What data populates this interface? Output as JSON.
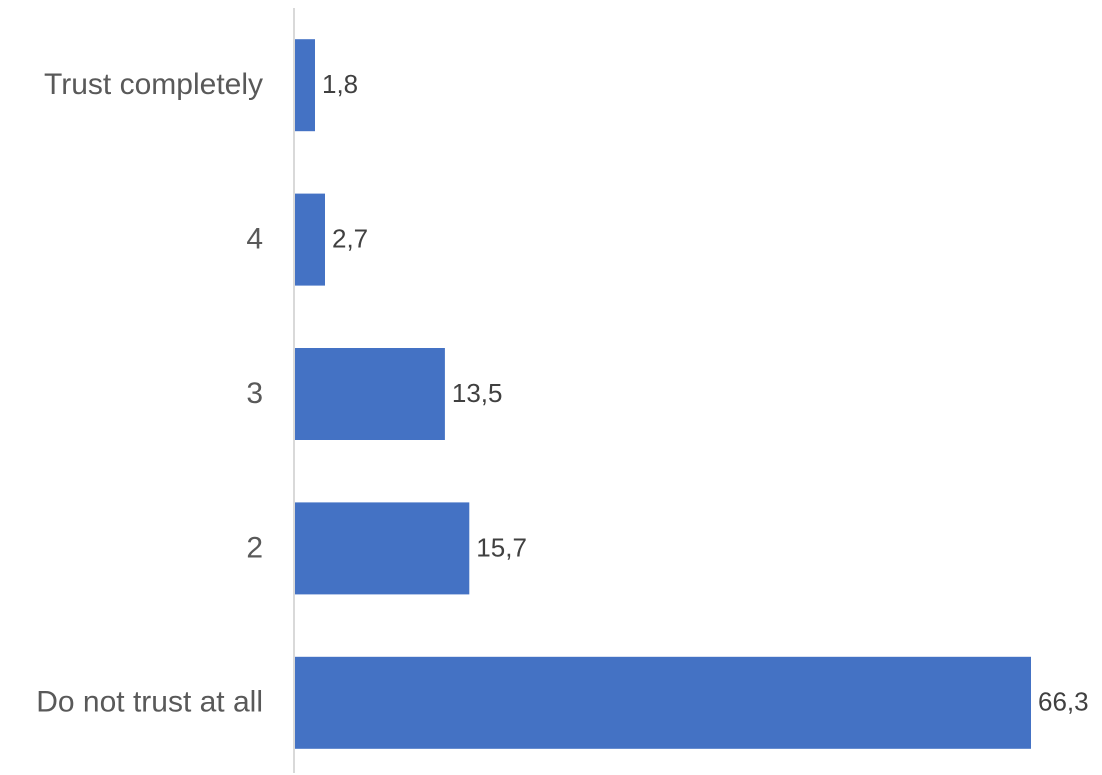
{
  "chart_data": {
    "type": "bar",
    "orientation": "horizontal",
    "categories": [
      "Trust completely",
      "4",
      "3",
      "2",
      "Do not trust at all"
    ],
    "values": [
      1.8,
      2.7,
      13.5,
      15.7,
      66.3
    ],
    "value_labels": [
      "1,8",
      "2,7",
      "13,5",
      "15,7",
      "66,3"
    ],
    "title": "",
    "xlabel": "",
    "ylabel": "",
    "xlim": [
      0,
      66.3
    ],
    "grid": false,
    "legend": "none",
    "bar_color": "#4472C4",
    "axis_color": "#D9D9D9"
  }
}
